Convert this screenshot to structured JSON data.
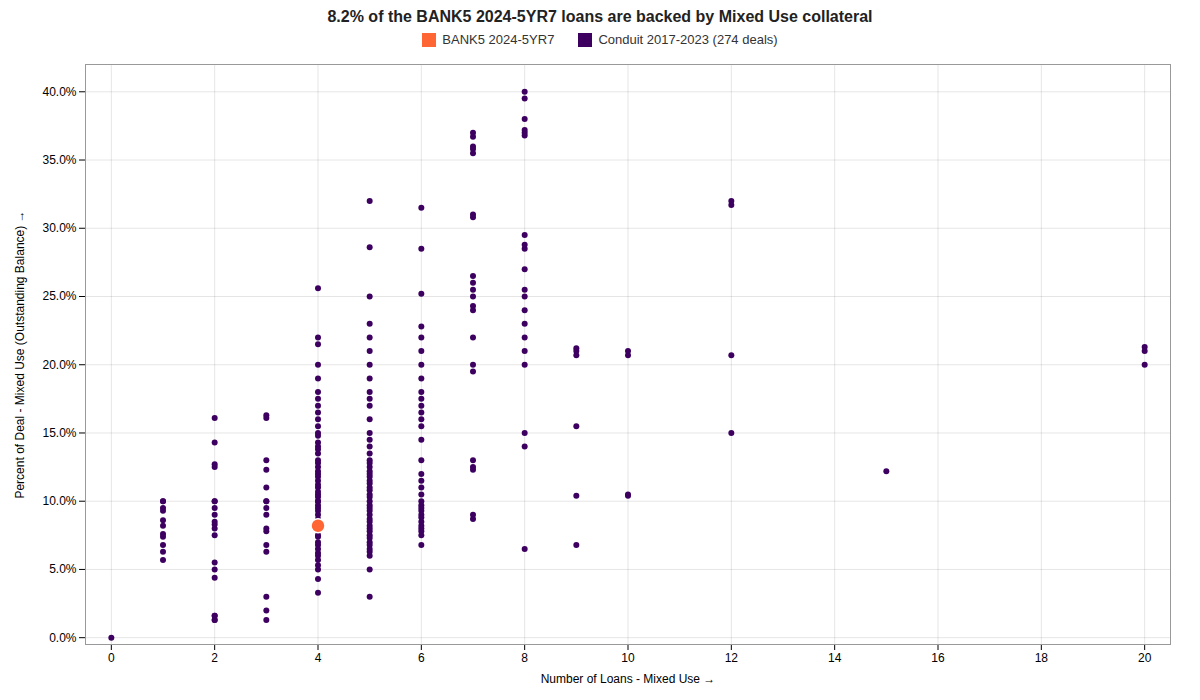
{
  "chart_data": {
    "type": "scatter",
    "title": "8.2% of the BANK5 2024-5YR7 loans are backed by Mixed Use collateral",
    "x_label": "Number of Loans - Mixed Use",
    "y_label": "Percent of Deal - Mixed Use (Outstanding Balance)",
    "xlim": [
      -0.5,
      20.5
    ],
    "ylim": [
      -0.005,
      0.42
    ],
    "xticks": [
      0,
      2,
      4,
      6,
      8,
      10,
      12,
      14,
      16,
      18,
      20
    ],
    "yticks": [
      {
        "value": 0,
        "label": "0.0%"
      },
      {
        "value": 0.05,
        "label": "5.0%"
      },
      {
        "value": 0.1,
        "label": "10.0%"
      },
      {
        "value": 0.15,
        "label": "15.0%"
      },
      {
        "value": 0.2,
        "label": "20.0%"
      },
      {
        "value": 0.25,
        "label": "25.0%"
      },
      {
        "value": 0.3,
        "label": "30.0%"
      },
      {
        "value": 0.35,
        "label": "35.0%"
      },
      {
        "value": 0.4,
        "label": "40.0%"
      }
    ],
    "grid": true,
    "legend": "top",
    "series": [
      {
        "name": "BANK5 2024-5YR7",
        "color": "#FF6633",
        "x": [
          4
        ],
        "values": [
          0.082
        ]
      },
      {
        "name": "Conduit 2017-2023 (274 deals)",
        "color": "#3D0060",
        "x": [
          0,
          1,
          1,
          1,
          1,
          1,
          1,
          1,
          1,
          1,
          1,
          1,
          2,
          2,
          2,
          2,
          2,
          2,
          2,
          2,
          2,
          2,
          2,
          2,
          2,
          2,
          2,
          2,
          2,
          2,
          2,
          3,
          3,
          3,
          3,
          3,
          3,
          3,
          3,
          3,
          3,
          3,
          3,
          3,
          3,
          3,
          3,
          4,
          4,
          4,
          4,
          4,
          4,
          4,
          4,
          4,
          4,
          4,
          4,
          4,
          4,
          4,
          4,
          4,
          4,
          4,
          4,
          4,
          4,
          4,
          4,
          4,
          4,
          4,
          4,
          4,
          4,
          4,
          4,
          4,
          4,
          4,
          4,
          4,
          4,
          4,
          4,
          4,
          4,
          4,
          4,
          4,
          4,
          4,
          4,
          4,
          4,
          4,
          4,
          5,
          5,
          5,
          5,
          5,
          5,
          5,
          5,
          5,
          5,
          5,
          5,
          5,
          5,
          5,
          5,
          5,
          5,
          5,
          5,
          5,
          5,
          5,
          5,
          5,
          5,
          5,
          5,
          5,
          5,
          5,
          5,
          5,
          5,
          5,
          5,
          5,
          5,
          5,
          5,
          5,
          5,
          5,
          5,
          5,
          5,
          5,
          6,
          6,
          6,
          6,
          6,
          6,
          6,
          6,
          6,
          6,
          6,
          6,
          6,
          6,
          6,
          6,
          6,
          6,
          6,
          6,
          6,
          6,
          6,
          6,
          6,
          6,
          6,
          6,
          6,
          6,
          6,
          6,
          7,
          7,
          7,
          7,
          7,
          7,
          7,
          7,
          7,
          7,
          7,
          7,
          7,
          7,
          7,
          7,
          7,
          7,
          7,
          7,
          7,
          8,
          8,
          8,
          8,
          8,
          8,
          8,
          8,
          8,
          8,
          8,
          8,
          8,
          8,
          8,
          8,
          8,
          8,
          8,
          8,
          9,
          9,
          9,
          9,
          9,
          9,
          10,
          10,
          10,
          10,
          12,
          12,
          12,
          12,
          15,
          20,
          20,
          20
        ],
        "values": [
          0.0,
          0.057,
          0.063,
          0.068,
          0.074,
          0.076,
          0.082,
          0.086,
          0.093,
          0.095,
          0.1,
          0.1,
          0.013,
          0.016,
          0.044,
          0.05,
          0.055,
          0.075,
          0.08,
          0.083,
          0.085,
          0.09,
          0.095,
          0.1,
          0.1,
          0.125,
          0.127,
          0.143,
          0.161,
          0.013,
          0.016,
          0.013,
          0.02,
          0.03,
          0.063,
          0.068,
          0.078,
          0.08,
          0.09,
          0.095,
          0.1,
          0.1,
          0.11,
          0.123,
          0.13,
          0.161,
          0.163,
          0.033,
          0.043,
          0.05,
          0.053,
          0.057,
          0.06,
          0.062,
          0.065,
          0.068,
          0.07,
          0.074,
          0.075,
          0.078,
          0.08,
          0.082,
          0.085,
          0.087,
          0.09,
          0.093,
          0.095,
          0.097,
          0.1,
          0.1,
          0.103,
          0.105,
          0.107,
          0.11,
          0.112,
          0.115,
          0.118,
          0.12,
          0.122,
          0.125,
          0.128,
          0.13,
          0.135,
          0.138,
          0.14,
          0.143,
          0.148,
          0.15,
          0.155,
          0.16,
          0.165,
          0.17,
          0.175,
          0.18,
          0.19,
          0.2,
          0.215,
          0.22,
          0.256,
          0.03,
          0.05,
          0.06,
          0.063,
          0.065,
          0.068,
          0.07,
          0.073,
          0.075,
          0.078,
          0.08,
          0.082,
          0.085,
          0.087,
          0.09,
          0.093,
          0.095,
          0.097,
          0.1,
          0.103,
          0.105,
          0.108,
          0.11,
          0.113,
          0.115,
          0.118,
          0.12,
          0.122,
          0.125,
          0.128,
          0.13,
          0.135,
          0.14,
          0.145,
          0.15,
          0.16,
          0.17,
          0.175,
          0.18,
          0.19,
          0.2,
          0.21,
          0.22,
          0.23,
          0.25,
          0.286,
          0.32,
          0.068,
          0.075,
          0.078,
          0.08,
          0.082,
          0.085,
          0.088,
          0.09,
          0.093,
          0.095,
          0.097,
          0.1,
          0.105,
          0.11,
          0.115,
          0.12,
          0.13,
          0.145,
          0.155,
          0.16,
          0.165,
          0.17,
          0.175,
          0.18,
          0.19,
          0.2,
          0.21,
          0.22,
          0.228,
          0.252,
          0.285,
          0.315,
          0.087,
          0.09,
          0.123,
          0.125,
          0.13,
          0.195,
          0.2,
          0.22,
          0.24,
          0.243,
          0.25,
          0.255,
          0.26,
          0.265,
          0.308,
          0.31,
          0.355,
          0.358,
          0.36,
          0.367,
          0.37,
          0.065,
          0.14,
          0.15,
          0.2,
          0.21,
          0.22,
          0.23,
          0.24,
          0.25,
          0.255,
          0.27,
          0.285,
          0.288,
          0.295,
          0.368,
          0.37,
          0.372,
          0.38,
          0.395,
          0.4,
          0.068,
          0.104,
          0.155,
          0.207,
          0.21,
          0.212,
          0.104,
          0.105,
          0.207,
          0.21,
          0.15,
          0.207,
          0.317,
          0.32,
          0.122,
          0.2,
          0.21,
          0.213
        ]
      }
    ]
  }
}
